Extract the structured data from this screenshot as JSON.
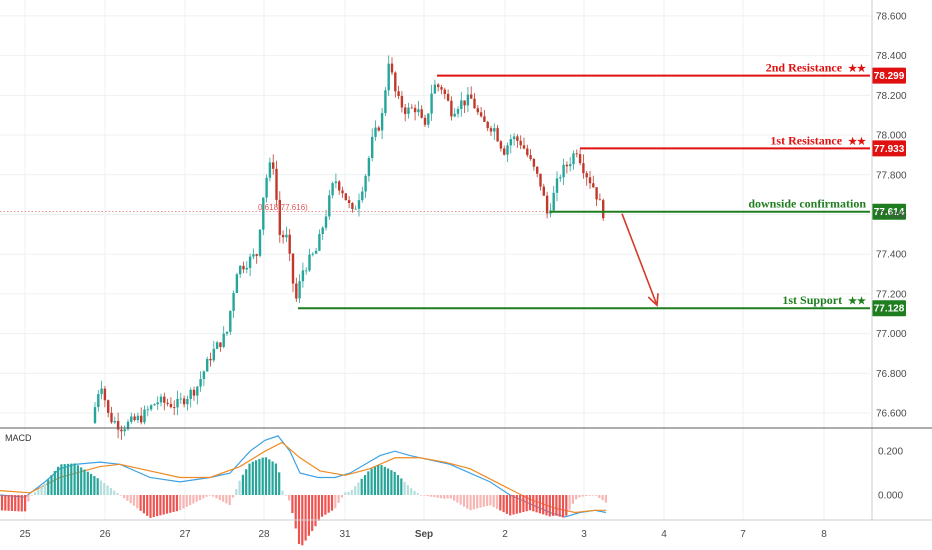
{
  "chart_data": {
    "type": "candlestick",
    "price_axis": {
      "ylim": [
        76.53,
        78.68
      ],
      "ticks": [
        "78.600",
        "78.400",
        "78.200",
        "78.000",
        "77.800",
        "77.600",
        "77.400",
        "77.200",
        "77.000",
        "76.800",
        "76.600"
      ]
    },
    "x_axis": {
      "ticks": [
        "25",
        "26",
        "27",
        "28",
        "31",
        "Sep",
        "2",
        "3",
        "4",
        "7",
        "8"
      ]
    },
    "levels": [
      {
        "name": "2nd Resistance",
        "stars": "★★",
        "value": 78.299,
        "tag": "78.299",
        "color": "#e01010",
        "kind": "resistance"
      },
      {
        "name": "1st Resistance",
        "stars": "★★",
        "value": 77.933,
        "tag": "77.933",
        "color": "#e01010",
        "kind": "resistance"
      },
      {
        "name": "downside confirmation",
        "stars": "",
        "value": 77.614,
        "tag": "77.614",
        "color": "#1e7d1e",
        "kind": "pivot"
      },
      {
        "name": "1st Support",
        "stars": "★★",
        "value": 77.128,
        "tag": "77.128",
        "color": "#1e7d1e",
        "kind": "support"
      }
    ],
    "fib_label": "0.618(77.616)",
    "macd": {
      "title": "MACD",
      "ylim": [
        -0.24,
        0.35
      ],
      "ticks": [
        "0.200",
        "0.000"
      ]
    },
    "colors": {
      "up": "#26a69a",
      "down": "#c0392b",
      "arrow": "#d63a2a",
      "grid": "#eef0f3"
    }
  }
}
